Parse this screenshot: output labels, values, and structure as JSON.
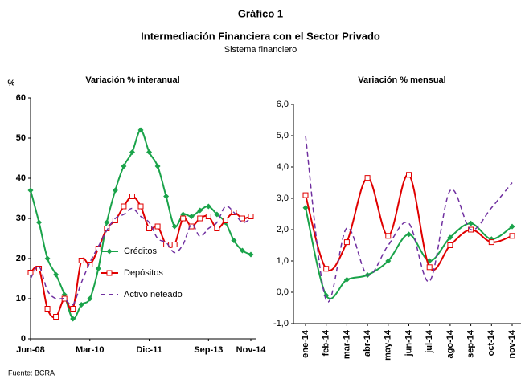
{
  "title": "Gráfico 1",
  "subtitle": "Intermediación Financiera con el Sector Privado",
  "caption": "Sistema financiero",
  "source": "Fuente: BCRA",
  "chart_data": [
    {
      "type": "line",
      "title": "Variación % interanual",
      "ylabel": "%",
      "categories": [
        "Jun-08",
        null,
        null,
        null,
        null,
        null,
        null,
        "Mar-10",
        null,
        null,
        null,
        null,
        null,
        null,
        "Dic-11",
        null,
        null,
        null,
        null,
        null,
        null,
        "Sep-13",
        null,
        null,
        null,
        null,
        "Nov-14"
      ],
      "ylim": [
        0,
        60
      ],
      "yticks": [
        0,
        10,
        20,
        30,
        40,
        50,
        60
      ],
      "grid": false,
      "legend": "inside",
      "smooth": true,
      "x_label_rotation": 0,
      "series": [
        {
          "name": "Créditos",
          "color": "#1aa34a",
          "marker": "diamond",
          "dashed": false,
          "values": [
            37,
            29,
            20,
            16,
            11,
            5,
            8.5,
            10,
            17.5,
            29,
            37,
            43,
            46.5,
            52,
            46.5,
            43,
            35.5,
            28,
            31,
            30.5,
            32,
            33,
            31,
            29,
            24.5,
            22,
            21
          ]
        },
        {
          "name": "Depósitos",
          "color": "#e00000",
          "marker": "square",
          "dashed": false,
          "values": [
            16.5,
            17.5,
            7.5,
            5.5,
            10,
            7.5,
            19.5,
            18.5,
            22.5,
            27.5,
            29.5,
            33,
            35.5,
            33,
            27.5,
            28,
            23.5,
            23.5,
            30,
            28,
            30,
            30.5,
            27.5,
            29.5,
            31.5,
            30,
            30.5
          ]
        },
        {
          "name": "Activo neteado",
          "color": "#7030a0",
          "marker": null,
          "dashed": true,
          "values": [
            15,
            18,
            12,
            10,
            10,
            8.5,
            14,
            19,
            23,
            27,
            30,
            31,
            32.5,
            30.5,
            29,
            25,
            24,
            21.5,
            23.5,
            28.5,
            25.5,
            27.5,
            29,
            33,
            31.5,
            29,
            30
          ]
        }
      ]
    },
    {
      "type": "line",
      "title": "Variación % mensual",
      "categories": [
        "ene-14",
        "feb-14",
        "mar-14",
        "abr-14",
        "may-14",
        "jun-14",
        "jul-14",
        "ago-14",
        "sep-14",
        "oct-14",
        "nov-14"
      ],
      "ylim": [
        -1,
        6
      ],
      "yticks": [
        {
          "value": -1,
          "label": "-1,0"
        },
        {
          "value": 0,
          "label": "0,0"
        },
        {
          "value": 1,
          "label": "1,0"
        },
        {
          "value": 2,
          "label": "2,0"
        },
        {
          "value": 3,
          "label": "3,0"
        },
        {
          "value": 4,
          "label": "4,0"
        },
        {
          "value": 5,
          "label": "5,0"
        },
        {
          "value": 6,
          "label": "6,0"
        }
      ],
      "grid": false,
      "legend": null,
      "smooth": true,
      "x_label_rotation": -90,
      "series": [
        {
          "name": "Créditos",
          "color": "#1aa34a",
          "marker": "diamond",
          "dashed": false,
          "values": [
            2.7,
            -0.1,
            0.4,
            0.55,
            1.0,
            1.85,
            1.0,
            1.75,
            2.2,
            1.7,
            2.1
          ]
        },
        {
          "name": "Depósitos",
          "color": "#e00000",
          "marker": "square",
          "dashed": false,
          "values": [
            3.1,
            0.75,
            1.6,
            3.65,
            1.8,
            3.75,
            0.8,
            1.5,
            2.0,
            1.6,
            1.8
          ]
        },
        {
          "name": "Activo neteado",
          "color": "#7030a0",
          "marker": null,
          "dashed": true,
          "values": [
            5.0,
            -0.25,
            2.05,
            0.55,
            1.5,
            2.2,
            0.35,
            3.25,
            2.0,
            2.7,
            3.5
          ]
        }
      ]
    }
  ]
}
